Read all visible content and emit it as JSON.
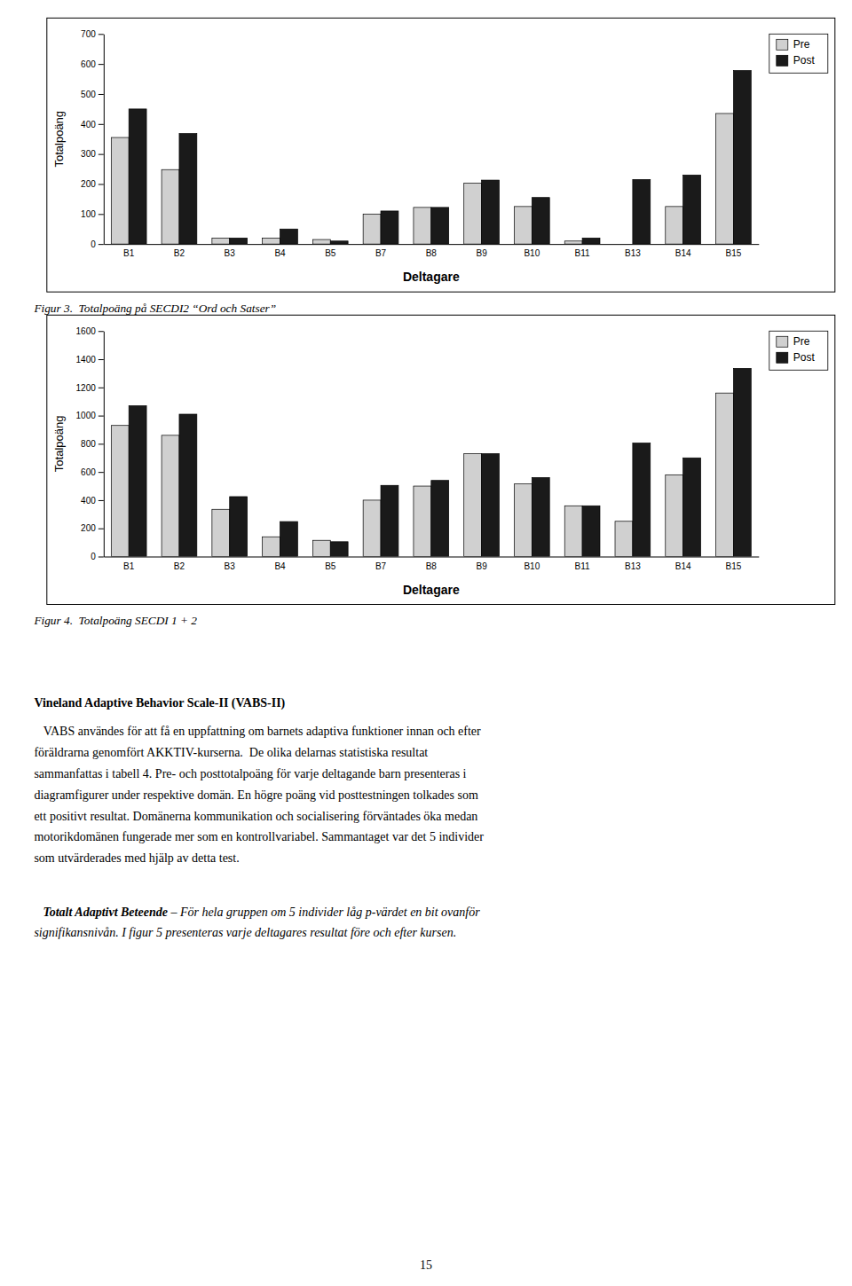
{
  "chart_data": [
    {
      "type": "bar",
      "title": "Figur 3.  Totalpoäng på SECDI2 “Ord och Satser”",
      "xlabel": "Deltagare",
      "ylabel": "Totalpoäng",
      "categories": [
        "B1",
        "B2",
        "B3",
        "B4",
        "B5",
        "B7",
        "B8",
        "B9",
        "B10",
        "B11",
        "B13",
        "B14",
        "B15"
      ],
      "series": [
        {
          "name": "Pre",
          "color": "#d0d0d0",
          "values": [
            355,
            248,
            20,
            20,
            15,
            100,
            122,
            203,
            125,
            10,
            0,
            125,
            435
          ]
        },
        {
          "name": "Post",
          "color": "#1a1a1a",
          "values": [
            450,
            368,
            20,
            50,
            10,
            110,
            122,
            213,
            155,
            20,
            215,
            230,
            578
          ]
        }
      ],
      "ylim": [
        0,
        700
      ],
      "yticks": [
        0,
        100,
        200,
        300,
        400,
        500,
        600,
        700
      ],
      "grid": false,
      "legend": "upper right"
    },
    {
      "type": "bar",
      "title": "Figur 4.  Totalpoäng SECDI 1 + 2",
      "xlabel": "Deltagare",
      "ylabel": "Totalpoäng",
      "categories": [
        "B1",
        "B2",
        "B3",
        "B4",
        "B5",
        "B7",
        "B8",
        "B9",
        "B10",
        "B11",
        "B13",
        "B14",
        "B15"
      ],
      "series": [
        {
          "name": "Pre",
          "color": "#d0d0d0",
          "values": [
            930,
            860,
            335,
            140,
            115,
            400,
            500,
            730,
            515,
            360,
            250,
            580,
            1160
          ]
        },
        {
          "name": "Post",
          "color": "#1a1a1a",
          "values": [
            1070,
            1010,
            425,
            248,
            105,
            505,
            540,
            730,
            560,
            360,
            805,
            700,
            1335
          ]
        }
      ],
      "ylim": [
        0,
        1600
      ],
      "yticks": [
        0,
        200,
        400,
        600,
        800,
        1000,
        1200,
        1400,
        1600
      ],
      "grid": false,
      "legend": "upper right"
    }
  ],
  "body_heading": "Vineland Adaptive Behavior Scale-II (VABS-II)",
  "body_lines": [
    "   VABS användes för att få en uppfattning om barnets adaptiva funktioner innan och efter",
    "föräldrarna genomfört AKKTIV-kurserna.  De olika delarnas statistiska resultat",
    "sammanfattas i tabell 4. Pre- och posttotalpoäng för varje deltagande barn presenteras i",
    "diagramfigurer under respektive domän. En högre poäng vid posttestningen tolkades som",
    "ett positivt resultat. Domänerna kommunikation och socialisering förväntades öka medan",
    "motorikdomänen fungerade mer som en kontrollvariabel. Sammantaget var det 5 individer",
    "som utvärderades med hjälp av detta test."
  ],
  "italic_bold_word": "Totalt Adaptivt Beteende",
  "italic_lines": [
    " – För hela gruppen om 5 individer låg p-värdet en bit ovanför",
    "signifikansnivån. I figur 5 presenteras varje deltagares resultat före och efter kursen."
  ],
  "page_number": "15"
}
